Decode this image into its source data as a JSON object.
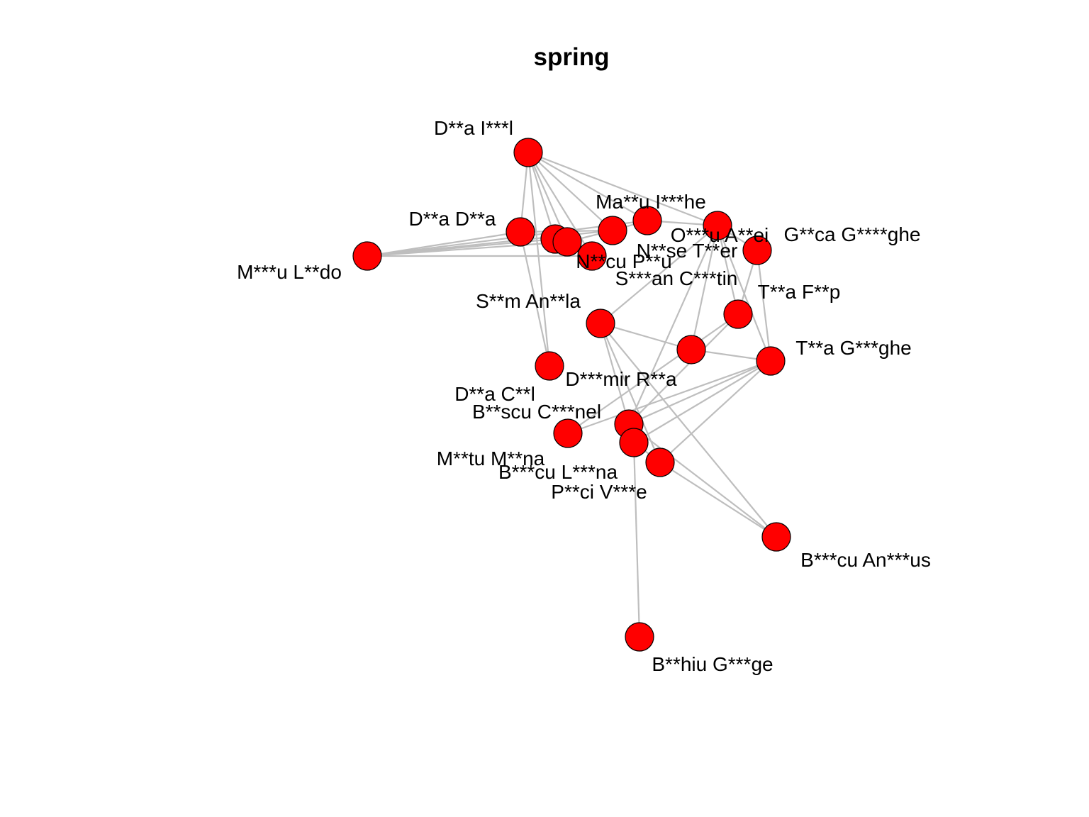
{
  "title": "spring",
  "colors": {
    "node_fill": "#ff0000",
    "node_stroke": "#000000",
    "edge": "#bebebe",
    "background": "#ffffff"
  },
  "nodes": [
    {
      "id": "dai",
      "label": "D**a I***l"
    },
    {
      "id": "mai",
      "label": "Ma**u I***he"
    },
    {
      "id": "dad",
      "label": "D**a D**a"
    },
    {
      "id": "mld",
      "label": "M***u L**do"
    },
    {
      "id": "n1",
      "label": ""
    },
    {
      "id": "n2",
      "label": ""
    },
    {
      "id": "ncp",
      "label": "N**cu P**u"
    },
    {
      "id": "sac",
      "label": "S***an C***tin"
    },
    {
      "id": "nst",
      "label": "N**se T**er"
    },
    {
      "id": "oaa",
      "label": "O***u A**ei"
    },
    {
      "id": "ggg",
      "label": "G**ca G****ghe"
    },
    {
      "id": "tfp",
      "label": "T**a F**p"
    },
    {
      "id": "sma",
      "label": "S**m An**la"
    },
    {
      "id": "tgg",
      "label": "T**a G***ghe"
    },
    {
      "id": "dmr",
      "label": "D***mir R**a"
    },
    {
      "id": "dac",
      "label": "D**a C**l"
    },
    {
      "id": "bsc",
      "label": "B**scu C***nel"
    },
    {
      "id": "mmm",
      "label": "M**tu M**na"
    },
    {
      "id": "bcl",
      "label": "B***cu L***na"
    },
    {
      "id": "pcv",
      "label": "P**ci V***e"
    },
    {
      "id": "bca",
      "label": "B***cu An***us"
    },
    {
      "id": "bhg",
      "label": "B**hiu G***ge"
    }
  ],
  "edges": [
    [
      "dai",
      "dad"
    ],
    [
      "dai",
      "n1"
    ],
    [
      "dai",
      "n2"
    ],
    [
      "dai",
      "ncp"
    ],
    [
      "dai",
      "nst"
    ],
    [
      "dai",
      "mai"
    ],
    [
      "dai",
      "oaa"
    ],
    [
      "dai",
      "dac"
    ],
    [
      "mld",
      "dad"
    ],
    [
      "mld",
      "n1"
    ],
    [
      "mld",
      "n2"
    ],
    [
      "mld",
      "ncp"
    ],
    [
      "mld",
      "nst"
    ],
    [
      "mld",
      "mai"
    ],
    [
      "dad",
      "dac"
    ],
    [
      "n1",
      "ncp"
    ],
    [
      "n2",
      "nst"
    ],
    [
      "nst",
      "mai"
    ],
    [
      "oaa",
      "tfp"
    ],
    [
      "oaa",
      "tgg"
    ],
    [
      "oaa",
      "ggg"
    ],
    [
      "oaa",
      "dmr"
    ],
    [
      "oaa",
      "sma"
    ],
    [
      "oaa",
      "bsc"
    ],
    [
      "mai",
      "oaa"
    ],
    [
      "ggg",
      "tgg"
    ],
    [
      "ggg",
      "tfp"
    ],
    [
      "tfp",
      "bsc"
    ],
    [
      "tfp",
      "mmm"
    ],
    [
      "sma",
      "dmr"
    ],
    [
      "sma",
      "bsc"
    ],
    [
      "sma",
      "pcv"
    ],
    [
      "sma",
      "bca"
    ],
    [
      "dmr",
      "tgg"
    ],
    [
      "tgg",
      "bsc"
    ],
    [
      "tgg",
      "bcl"
    ],
    [
      "tgg",
      "pcv"
    ],
    [
      "tgg",
      "mmm"
    ],
    [
      "bsc",
      "bcl"
    ],
    [
      "bsc",
      "bca"
    ],
    [
      "bcl",
      "pcv"
    ],
    [
      "pcv",
      "bca"
    ],
    [
      "bcl",
      "bhg"
    ],
    [
      "dad",
      "nst"
    ]
  ]
}
